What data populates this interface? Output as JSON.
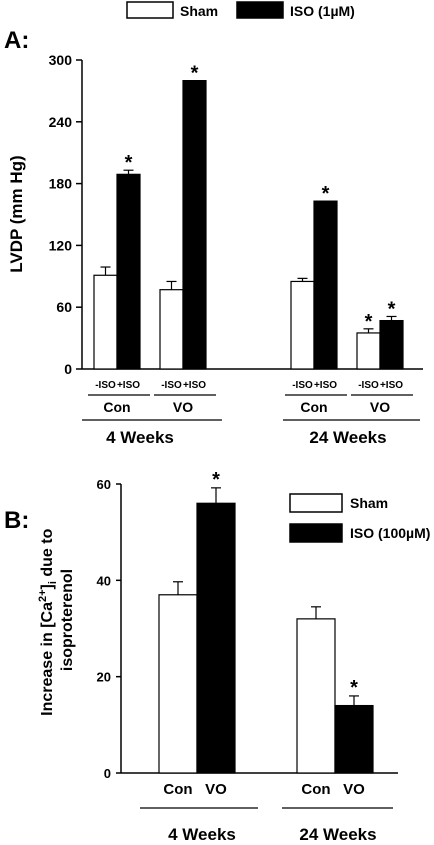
{
  "legends": {
    "a": {
      "items": [
        "Sham",
        "ISO (1µM)"
      ]
    },
    "b": {
      "items": [
        "Sham",
        "ISO (100µM)"
      ]
    }
  },
  "colors": {
    "sham": "#ffffff",
    "iso": "#000000",
    "stroke": "#000000"
  },
  "chart_data": [
    {
      "type": "bar",
      "panel_label": "A:",
      "ylabel": "LVDP (mm Hg)",
      "ylim": [
        0,
        300
      ],
      "yticks": [
        "0",
        "60",
        "120",
        "180",
        "240",
        "300"
      ],
      "series": [
        {
          "name": "Sham",
          "values": [
            91,
            77,
            85,
            35
          ],
          "errors": [
            8,
            8,
            3,
            4
          ]
        },
        {
          "name": "ISO (1µM)",
          "values": [
            189,
            280,
            163,
            47
          ],
          "errors": [
            4,
            0,
            0,
            4
          ]
        }
      ],
      "significance": [
        [
          false,
          true
        ],
        [
          false,
          true
        ],
        [
          false,
          true
        ],
        [
          true,
          true
        ]
      ],
      "bar_labels": [
        "-ISO",
        "+ISO"
      ],
      "groups": [
        "Con",
        "VO",
        "Con",
        "VO"
      ],
      "periods": [
        "4 Weeks",
        "24 Weeks"
      ],
      "star": "*"
    },
    {
      "type": "bar",
      "panel_label": "B:",
      "ylabel": "Increase in [Ca2+]i due to isoproterenol",
      "ylabel_parts": [
        "Increase in [Ca",
        "2+",
        "]",
        "i",
        " due to",
        "isoproterenol"
      ],
      "ylim": [
        0,
        60
      ],
      "yticks": [
        "0",
        "20",
        "40",
        "60"
      ],
      "categories": [
        "Con",
        "VO",
        "Con",
        "VO"
      ],
      "values": [
        37,
        56,
        32,
        14
      ],
      "errors": [
        2.7,
        3.2,
        2.5,
        2.0
      ],
      "fills": [
        "sham",
        "iso",
        "sham",
        "iso"
      ],
      "significant": [
        false,
        true,
        false,
        true
      ],
      "periods": [
        "4 Weeks",
        "24 Weeks"
      ],
      "star": "*"
    }
  ]
}
